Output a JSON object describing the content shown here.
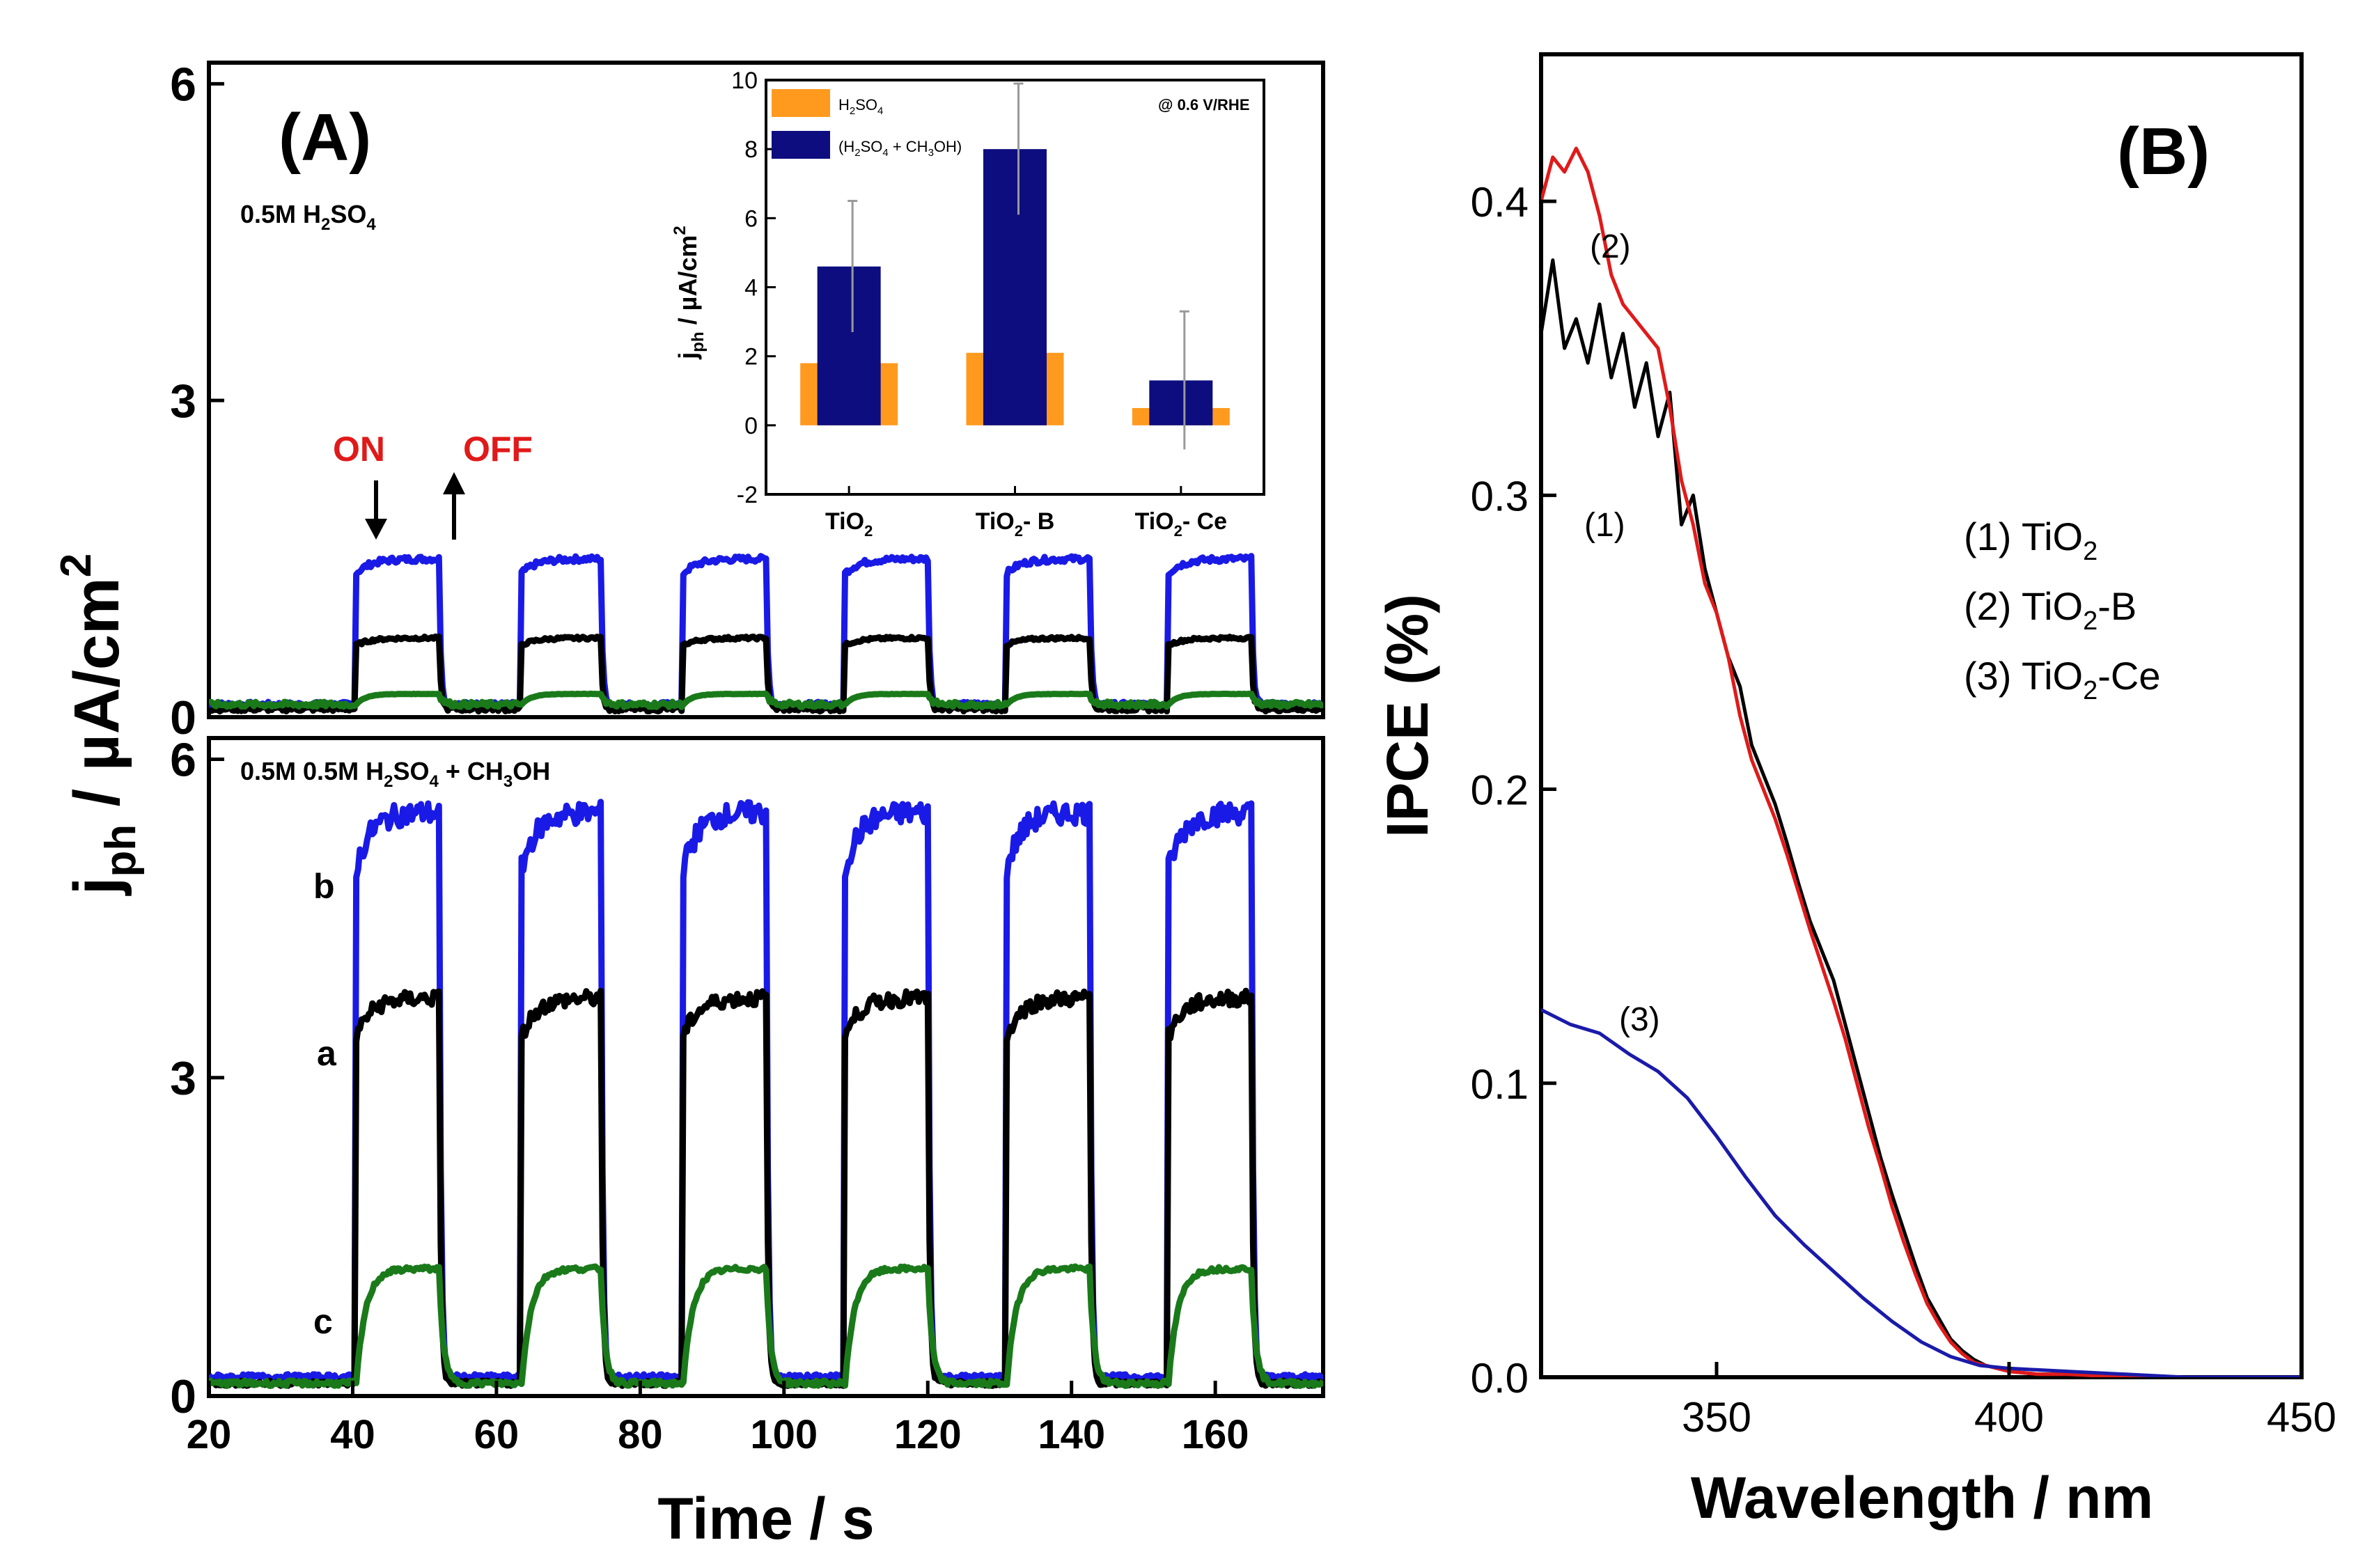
{
  "chart_data": [
    {
      "id": "A-top",
      "type": "line",
      "title": "(A)",
      "electrolyte_prefix": "0.5M H",
      "electrolyte_sub1": "2",
      "electrolyte_mid": "SO",
      "electrolyte_sub2": "4",
      "on_label": "ON",
      "off_label": "OFF",
      "xlim": [
        20,
        175
      ],
      "ylim": [
        0,
        6.2
      ],
      "yticks": [
        "0",
        "3",
        "6"
      ],
      "light_on_intervals": [
        [
          40.5,
          52
        ],
        [
          63.5,
          74.5
        ],
        [
          86,
          97.5
        ],
        [
          108.5,
          120
        ],
        [
          131,
          142.5
        ],
        [
          153.5,
          165
        ]
      ],
      "series": [
        {
          "name": "TiO2-B (blue)",
          "color": "#1a1ae6",
          "baseline": 0.12,
          "plateau": 1.5,
          "rise": "fast"
        },
        {
          "name": "TiO2 (black)",
          "color": "#000000",
          "baseline": 0.08,
          "plateau": 0.75,
          "rise": "fast"
        },
        {
          "name": "TiO2-Ce (green)",
          "color": "#1a7a1a",
          "baseline": 0.12,
          "plateau": 0.22,
          "rise": "slow"
        }
      ]
    },
    {
      "id": "A-bottom",
      "type": "line",
      "electrolyte_prefix": "0.5M 0.5M H",
      "electrolyte_sub1": "2",
      "electrolyte_mid": "SO",
      "electrolyte_sub2": "4",
      "electrolyte_mid2": " + CH",
      "electrolyte_sub3": "3",
      "electrolyte_suffix": "OH",
      "xlabel": "Time / s",
      "ylabel_main": "j",
      "ylabel_sub": "ph",
      "ylabel_rest": " / µA/cm",
      "ylabel_sup": "2",
      "xlim": [
        20,
        175
      ],
      "ylim": [
        0,
        6.2
      ],
      "xticks": [
        "20",
        "40",
        "60",
        "80",
        "100",
        "120",
        "140",
        "160"
      ],
      "yticks": [
        "0",
        "3",
        "6"
      ],
      "curve_labels": [
        "b",
        "a",
        "c"
      ],
      "light_on_intervals": [
        [
          40.5,
          52
        ],
        [
          63.5,
          74.5
        ],
        [
          86,
          97.5
        ],
        [
          108.5,
          120
        ],
        [
          131,
          142.5
        ],
        [
          153.5,
          165
        ]
      ],
      "series": [
        {
          "name": "b",
          "color": "#1a1ae6",
          "baseline": 0.18,
          "plateau": 5.5,
          "rise": "fast"
        },
        {
          "name": "a",
          "color": "#000000",
          "baseline": 0.12,
          "plateau": 3.75,
          "rise": "fast"
        },
        {
          "name": "c",
          "color": "#1a7a1a",
          "baseline": 0.12,
          "plateau": 1.2,
          "rise": "slow"
        }
      ]
    },
    {
      "id": "A-inset",
      "type": "bar",
      "annotation": "@ 0.6 V/RHE",
      "ylabel_main": "j",
      "ylabel_sub": "ph",
      "ylabel_rest": " / µA/cm",
      "ylabel_sup": "2",
      "ylim": [
        -2,
        10
      ],
      "yticks": [
        "-2",
        "0",
        "2",
        "4",
        "6",
        "8",
        "10"
      ],
      "categories": [
        {
          "base": "TiO",
          "sub": "2",
          "tail": ""
        },
        {
          "base": "TiO",
          "sub": "2",
          "tail": "- B"
        },
        {
          "base": "TiO",
          "sub": "2",
          "tail": "- Ce"
        }
      ],
      "series": [
        {
          "name": "H2SO4",
          "legend_base": "H",
          "legend_sub1": "2",
          "legend_mid": "SO",
          "legend_sub2": "4",
          "color": "#ff9a1e",
          "values": [
            1.8,
            2.1,
            0.5
          ],
          "errors": [
            0.5,
            0.6,
            0.0
          ]
        },
        {
          "name": "(H2SO4 + CH3OH)",
          "legend_base": "(H",
          "legend_sub1": "2",
          "legend_mid": "SO",
          "legend_sub2": "4",
          "legend_mid2": " + CH",
          "legend_sub3": "3",
          "legend_tail": "OH)",
          "color": "#0d0d80",
          "values": [
            4.6,
            8.0,
            1.3
          ],
          "errors": [
            1.9,
            1.9,
            2.0
          ]
        }
      ]
    },
    {
      "id": "B",
      "type": "line",
      "title": "(B)",
      "xlabel": "Wavelength / nm",
      "ylabel": "IPCE (%)",
      "xlim": [
        320,
        450
      ],
      "ylim": [
        0,
        0.45
      ],
      "xticks": [
        "350",
        "400",
        "450"
      ],
      "yticks": [
        "0.0",
        "0.1",
        "0.2",
        "0.3",
        "0.4"
      ],
      "series": [
        {
          "name": "(1) TiO2",
          "label": "(1)",
          "legend_base": "(1) TiO",
          "legend_sub": "2",
          "legend_tail": "",
          "color": "#000000",
          "x": [
            320,
            322,
            324,
            326,
            328,
            330,
            332,
            334,
            336,
            338,
            340,
            342,
            344,
            346,
            348,
            350,
            352,
            354,
            356,
            358,
            360,
            362,
            364,
            366,
            368,
            370,
            372,
            374,
            376,
            378,
            380,
            382,
            384,
            386,
            388,
            390,
            392,
            394,
            396,
            398,
            400,
            405,
            410,
            420,
            430,
            440,
            450
          ],
          "y": [
            0.355,
            0.38,
            0.35,
            0.36,
            0.345,
            0.365,
            0.34,
            0.355,
            0.33,
            0.345,
            0.32,
            0.335,
            0.29,
            0.3,
            0.275,
            0.26,
            0.245,
            0.235,
            0.215,
            0.205,
            0.195,
            0.182,
            0.168,
            0.155,
            0.145,
            0.135,
            0.12,
            0.105,
            0.09,
            0.075,
            0.062,
            0.05,
            0.038,
            0.027,
            0.02,
            0.013,
            0.009,
            0.006,
            0.004,
            0.003,
            0.002,
            0.001,
            0.001,
            0.0,
            0.0,
            0.0,
            0.0
          ]
        },
        {
          "name": "(2) TiO2-B",
          "label": "(2)",
          "legend_base": "(2) TiO",
          "legend_sub": "2",
          "legend_tail": "-B",
          "color": "#e01a1a",
          "x": [
            320,
            322,
            324,
            326,
            328,
            330,
            332,
            334,
            336,
            338,
            340,
            342,
            344,
            346,
            348,
            350,
            352,
            354,
            356,
            358,
            360,
            362,
            364,
            366,
            368,
            370,
            372,
            374,
            376,
            378,
            380,
            382,
            384,
            386,
            388,
            390,
            392,
            394,
            396,
            398,
            400,
            405,
            410,
            420,
            430,
            440,
            450
          ],
          "y": [
            0.4,
            0.415,
            0.41,
            0.418,
            0.41,
            0.395,
            0.375,
            0.365,
            0.36,
            0.355,
            0.35,
            0.33,
            0.305,
            0.29,
            0.27,
            0.26,
            0.245,
            0.225,
            0.21,
            0.2,
            0.19,
            0.178,
            0.165,
            0.152,
            0.14,
            0.128,
            0.115,
            0.1,
            0.085,
            0.072,
            0.058,
            0.046,
            0.035,
            0.025,
            0.018,
            0.012,
            0.008,
            0.005,
            0.004,
            0.003,
            0.002,
            0.001,
            0.001,
            0.0,
            0.0,
            0.0,
            0.0
          ]
        },
        {
          "name": "(3) TiO2-Ce",
          "label": "(3)",
          "legend_base": "(3) TiO",
          "legend_sub": "2",
          "legend_tail": "-Ce",
          "color": "#1a1aaa",
          "x": [
            320,
            325,
            330,
            335,
            340,
            345,
            350,
            355,
            360,
            365,
            370,
            375,
            380,
            385,
            390,
            395,
            400,
            410,
            420,
            430,
            440,
            450
          ],
          "y": [
            0.125,
            0.12,
            0.117,
            0.11,
            0.104,
            0.095,
            0.082,
            0.068,
            0.055,
            0.045,
            0.036,
            0.027,
            0.019,
            0.012,
            0.007,
            0.004,
            0.003,
            0.002,
            0.001,
            0.0,
            0.0,
            0.0
          ]
        }
      ]
    }
  ]
}
